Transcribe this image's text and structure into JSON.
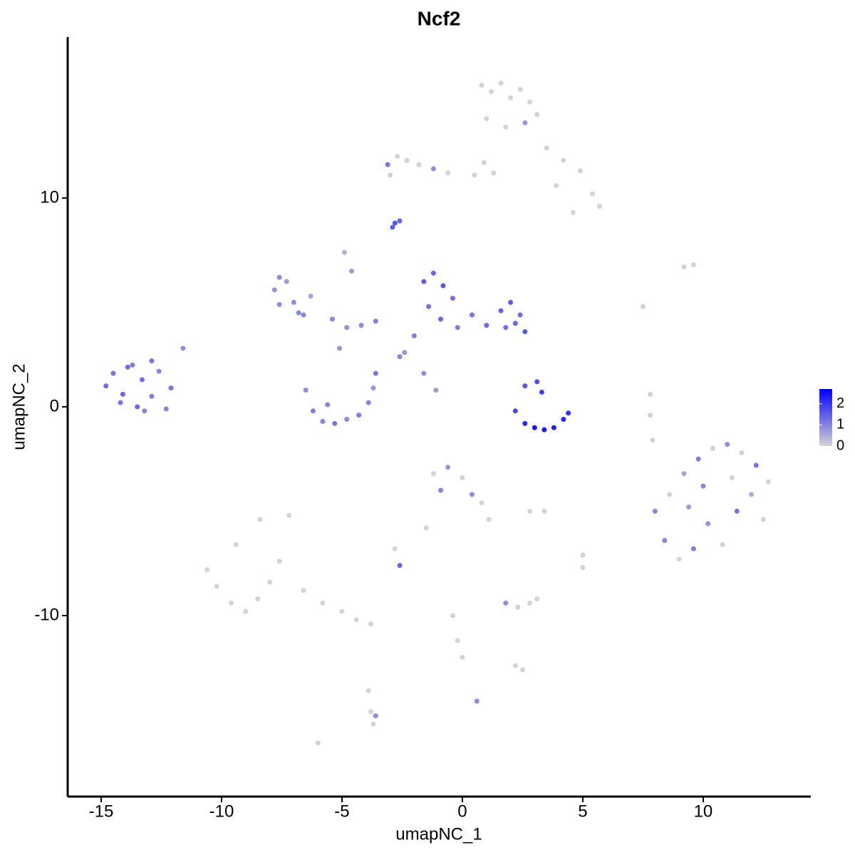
{
  "chart_data": {
    "type": "scatter",
    "title": "Ncf2",
    "x_label": "umapNC_1",
    "y_label": "umapNC_2",
    "xlim": [
      -16.39,
      14.47
    ],
    "ylim": [
      -18.67,
      17.71
    ],
    "xticks": [
      -15,
      -10,
      -5,
      0,
      5,
      10
    ],
    "yticks": [
      -10,
      0,
      10
    ],
    "color_low": "#d3d3d3",
    "color_high": "#0000ff",
    "colorbar_lim": [
      0,
      2.7
    ],
    "colorbar_ticks": [
      0,
      1,
      2
    ],
    "x": [
      0.8,
      1.2,
      1.6,
      2.0,
      2.4,
      2.8,
      3.1,
      1.0,
      1.8,
      2.6,
      3.5,
      4.2,
      4.9,
      5.4,
      5.7,
      4.6,
      3.9,
      1.3,
      0.9,
      0.5,
      -0.6,
      -1.2,
      -1.8,
      -2.3,
      -2.7,
      -3.1,
      -3.0,
      -2.9,
      -2.8,
      -2.6,
      -14.8,
      -14.5,
      -14.1,
      -13.7,
      -13.3,
      -12.9,
      -12.6,
      -14.2,
      -13.5,
      -12.9,
      -12.3,
      -12.1,
      -11.6,
      -13.9,
      -13.2,
      -7.8,
      -7.6,
      -7.3,
      -7.0,
      -6.8,
      -7.6,
      -6.6,
      -6.3,
      -5.4,
      -4.8,
      -4.2,
      -3.6,
      -4.6,
      -4.9,
      -5.1,
      -6.5,
      -6.2,
      -5.8,
      -5.3,
      -4.8,
      -4.3,
      -3.9,
      -3.7,
      -3.6,
      -5.6,
      -1.6,
      -1.2,
      -0.8,
      -0.4,
      -1.4,
      -0.9,
      -0.2,
      0.4,
      1.0,
      1.6,
      2.0,
      2.4,
      2.6,
      1.8,
      2.2,
      -2.0,
      -2.6,
      -2.4,
      -1.6,
      -1.1,
      2.2,
      2.6,
      3.0,
      3.4,
      3.8,
      4.2,
      4.4,
      3.1,
      3.3,
      2.6,
      8.0,
      8.6,
      9.2,
      9.8,
      10.4,
      11.0,
      11.6,
      12.2,
      12.7,
      8.4,
      9.0,
      9.6,
      10.2,
      10.8,
      11.4,
      12.0,
      12.5,
      10.0,
      11.2,
      9.4,
      -10.6,
      -10.2,
      -9.6,
      -9.0,
      -8.5,
      -8.0,
      -7.6,
      -9.4,
      -8.4,
      -7.2,
      -6.6,
      -5.8,
      -5.0,
      -4.4,
      -3.8,
      -3.9,
      -3.8,
      -3.7,
      -3.6,
      -6.0,
      -1.2,
      -0.6,
      0.0,
      0.4,
      0.8,
      1.1,
      -0.9,
      -1.5,
      -2.8,
      -2.6,
      1.8,
      2.3,
      2.8,
      3.1,
      -0.4,
      -0.2,
      0.0,
      2.2,
      2.5,
      7.8,
      7.8,
      7.9,
      9.2,
      9.6,
      5.0,
      5.0,
      7.5,
      0.6,
      2.8,
      3.4
    ],
    "values": [
      15.4,
      15.1,
      15.5,
      14.8,
      15.2,
      14.6,
      14.0,
      13.8,
      13.4,
      13.6,
      12.4,
      11.8,
      11.3,
      10.2,
      9.6,
      9.3,
      10.6,
      11.2,
      11.7,
      11.1,
      11.2,
      11.4,
      11.6,
      11.8,
      12.0,
      11.6,
      11.1,
      8.6,
      8.8,
      8.9,
      1.0,
      1.6,
      0.6,
      2.0,
      1.3,
      2.2,
      1.7,
      0.2,
      0.0,
      0.5,
      -0.1,
      0.9,
      2.8,
      1.9,
      -0.2,
      5.6,
      6.2,
      6.0,
      5.0,
      4.5,
      4.9,
      4.4,
      5.3,
      4.2,
      3.8,
      3.9,
      4.1,
      6.5,
      7.4,
      2.8,
      0.8,
      -0.2,
      -0.7,
      -0.8,
      -0.6,
      -0.4,
      0.2,
      0.9,
      1.6,
      0.1,
      6.0,
      6.4,
      5.8,
      5.2,
      4.8,
      4.2,
      3.8,
      4.4,
      3.9,
      4.6,
      5.0,
      4.4,
      3.6,
      3.8,
      4.0,
      3.4,
      2.4,
      2.6,
      1.6,
      0.8,
      -0.2,
      -0.8,
      -1.0,
      -1.1,
      -1.0,
      -0.6,
      -0.3,
      1.2,
      0.7,
      1.0,
      -5.0,
      -4.2,
      -3.2,
      -2.5,
      -2.0,
      -1.8,
      -2.2,
      -2.8,
      -3.6,
      -6.4,
      -7.3,
      -6.8,
      -5.6,
      -6.6,
      -5.0,
      -4.2,
      -5.4,
      -3.8,
      -3.4,
      -4.8,
      -7.8,
      -8.6,
      -9.4,
      -9.8,
      -9.2,
      -8.4,
      -7.4,
      -6.6,
      -5.4,
      -5.2,
      -8.8,
      -9.4,
      -9.8,
      -10.2,
      -10.4,
      -13.6,
      -14.6,
      -15.2,
      -14.8,
      -16.1,
      -3.2,
      -2.9,
      -3.4,
      -4.2,
      -4.6,
      -5.4,
      -4.0,
      -5.8,
      -6.8,
      -7.6,
      -9.4,
      -9.6,
      -9.4,
      -9.2,
      -10.0,
      -11.2,
      -12.0,
      -12.4,
      -12.6,
      0.6,
      -0.4,
      -1.6,
      6.7,
      6.8,
      -7.1,
      -7.7,
      4.8,
      -14.1,
      -5.0,
      -5.0
    ],
    "expression": [
      0,
      0,
      0,
      0,
      0,
      0,
      0,
      0,
      0,
      0.8,
      0,
      0,
      0,
      0,
      0,
      0,
      0,
      0,
      0,
      0,
      0,
      0.9,
      0,
      0,
      0,
      1.2,
      0,
      1.5,
      1.6,
      1.4,
      1.3,
      1.2,
      1.4,
      1.1,
      1.3,
      1.2,
      1.0,
      1.2,
      1.4,
      1.1,
      1.0,
      1.2,
      0.9,
      1.3,
      1.0,
      0.8,
      0.9,
      0.7,
      0.9,
      1.0,
      0.9,
      1.0,
      0.6,
      1.0,
      0.8,
      0.9,
      1.1,
      0.7,
      0.4,
      0.8,
      0.9,
      1.1,
      1.0,
      1.2,
      0.9,
      1.1,
      1.0,
      0.8,
      1.2,
      1.0,
      1.5,
      1.4,
      1.6,
      1.3,
      1.2,
      1.4,
      1.1,
      1.2,
      1.3,
      1.4,
      1.5,
      1.3,
      1.6,
      1.2,
      1.4,
      1.1,
      1.0,
      0.8,
      0.9,
      0.7,
      1.8,
      2.2,
      2.4,
      2.4,
      2.3,
      2.2,
      2.1,
      1.7,
      1.9,
      1.6,
      1.0,
      0,
      0.6,
      1.1,
      0,
      0.9,
      0,
      1.2,
      0,
      1.0,
      0,
      1.1,
      0.8,
      0,
      1.2,
      0.5,
      0,
      1.0,
      0,
      0.7,
      0,
      0,
      0,
      0,
      0,
      0,
      0,
      0,
      0,
      0,
      0,
      0,
      0,
      0,
      0,
      0,
      0,
      0,
      0.9,
      0,
      0,
      0.8,
      0,
      0.9,
      0,
      0,
      1.0,
      0,
      0,
      1.4,
      0.9,
      0,
      0,
      0,
      0,
      0,
      0,
      0,
      0,
      0,
      0,
      0,
      0,
      0,
      0,
      0,
      0,
      0.9,
      0,
      0
    ]
  }
}
